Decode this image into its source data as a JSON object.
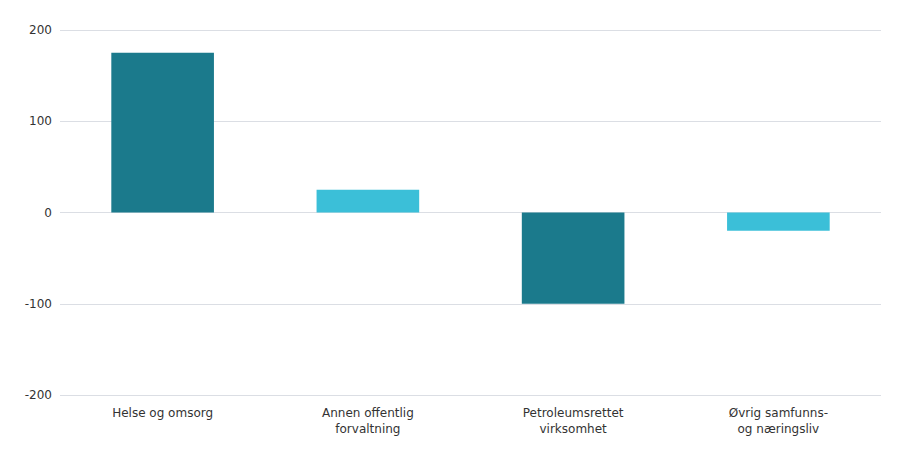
{
  "chart_data": {
    "type": "bar",
    "categories": [
      "Helse og omsorg",
      "Annen offentlig\nforvaltning",
      "Petroleumsrettet\nvirksomhet",
      "Øvrig samfunns-\nog næringsliv"
    ],
    "values": [
      175,
      25,
      -100,
      -20
    ],
    "colors": [
      "#1b7a8c",
      "#3bbfd8",
      "#1b7a8c",
      "#3bbfd8"
    ],
    "ylim": [
      -200,
      200
    ],
    "yticks": [
      -200,
      -100,
      0,
      100,
      200
    ],
    "grid": true
  }
}
